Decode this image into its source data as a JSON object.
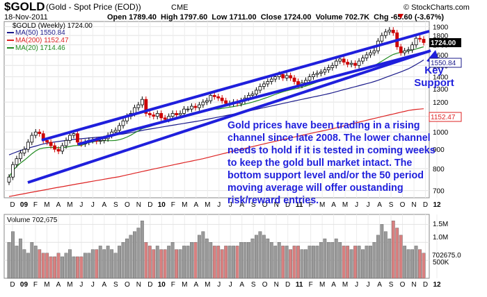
{
  "header": {
    "symbol": "$GOLD",
    "name": "(Gold - Spot Price (EOD))",
    "exchange": "CME",
    "site": "© StockCharts.com",
    "date": "18-Nov-2011",
    "ohlc": "Open 1789.40  High 1797.60  Low 1711.00  Close 1724.00  Volume 702.7K  Chg -65.60 (-3.67%)",
    "change_icon": "down-arrow-icon"
  },
  "colors": {
    "price_up": "#000000",
    "price_down": "#cc0000",
    "ma50": "#1a1a8a",
    "ma200": "#dd2222",
    "ma20": "#1f8a1f",
    "channel": "#1f1fdc",
    "annotation": "#1f1fdc",
    "vol_up": "#9a9a9a",
    "vol_down": "#d98080",
    "price_tag": "#000000",
    "ma50_tag": "#1a1a8a",
    "ma200_tag": "#dd2222"
  },
  "legend": {
    "title": "$GOLD (Weekly) 1724.00",
    "ma50": "MA(50) 1550.84",
    "ma200": "MA(200) 1152.47",
    "ma20": "MA(20) 1714.46"
  },
  "price_tags": {
    "close": "1724.00",
    "ma50": "1550.84",
    "ma200": "1152.47"
  },
  "annotation": {
    "text_lines": [
      "Gold prices have been trading in a rising",
      "channel since late 2008. The lower channel",
      "needs to hold if it is tested in coming weeks",
      "to keep the gold bull market intact. The",
      "bottom support level and/or the 50 period",
      "moving average will offer oustanding",
      "risk/reward entries."
    ],
    "key_support": [
      "Key",
      "Support"
    ]
  },
  "volume_panel": {
    "title": "Volume 702,675",
    "tags": [
      "1.5M",
      "1.0M",
      "702675.0",
      "500K"
    ]
  },
  "chart_data": {
    "type": "candlestick",
    "title": "$GOLD (Weekly) 1724.00",
    "x_tick_labels": [
      "D",
      "09",
      "F",
      "M",
      "A",
      "M",
      "J",
      "J",
      "A",
      "S",
      "O",
      "N",
      "D",
      "10",
      "F",
      "M",
      "A",
      "M",
      "J",
      "J",
      "A",
      "S",
      "O",
      "N",
      "D",
      "11",
      "F",
      "M",
      "A",
      "M",
      "J",
      "J",
      "A",
      "S",
      "O",
      "N",
      "D",
      "12"
    ],
    "y_tick_labels": [
      "700",
      "800",
      "900",
      "1000",
      "1100",
      "1200",
      "1300",
      "1400",
      "1500",
      "1600",
      "1700",
      "1800",
      "1900"
    ],
    "y_scale": "log",
    "ylim": [
      670,
      1960
    ],
    "volume_ticks": [
      "500K",
      "1.0M",
      "1.5M"
    ],
    "last_close": 1724.0,
    "moving_averages": [
      {
        "name": "MA(50)",
        "last": 1550.84
      },
      {
        "name": "MA(200)",
        "last": 1152.47
      },
      {
        "name": "MA(20)",
        "last": 1714.46
      }
    ],
    "weekly_close": [
      760,
      820,
      850,
      880,
      900,
      940,
      980,
      1000,
      990,
      950,
      940,
      920,
      900,
      890,
      920,
      950,
      980,
      990,
      940,
      930,
      940,
      950,
      950,
      945,
      950,
      960,
      980,
      1000,
      1010,
      1040,
      1070,
      1100,
      1120,
      1160,
      1180,
      1220,
      1120,
      1110,
      1100,
      1120,
      1090,
      1080,
      1100,
      1120,
      1110,
      1120,
      1150,
      1150,
      1170,
      1160,
      1180,
      1200,
      1210,
      1250,
      1240,
      1230,
      1210,
      1190,
      1190,
      1200,
      1190,
      1210,
      1230,
      1250,
      1260,
      1290,
      1320,
      1340,
      1360,
      1380,
      1400,
      1420,
      1390,
      1410,
      1390,
      1360,
      1330,
      1350,
      1370,
      1400,
      1420,
      1430,
      1440,
      1460,
      1480,
      1500,
      1540,
      1560,
      1530,
      1510,
      1520,
      1500,
      1540,
      1570,
      1600,
      1620,
      1640,
      1740,
      1800,
      1840,
      1860,
      1830,
      1680,
      1620,
      1640,
      1650,
      1700,
      1770,
      1760,
      1724
    ],
    "ma50": [
      870,
      878,
      886,
      893,
      900,
      906,
      912,
      918,
      924,
      930,
      934,
      938,
      941,
      944,
      947,
      950,
      953,
      956,
      958,
      960,
      962,
      964,
      966,
      968,
      970,
      973,
      976,
      979,
      982,
      985,
      988,
      992,
      996,
      1000,
      1005,
      1010,
      1014,
      1018,
      1022,
      1026,
      1030,
      1034,
      1038,
      1042,
      1046,
      1050,
      1054,
      1058,
      1062,
      1066,
      1070,
      1075,
      1080,
      1085,
      1090,
      1095,
      1100,
      1105,
      1110,
      1115,
      1120,
      1125,
      1130,
      1136,
      1142,
      1148,
      1154,
      1160,
      1166,
      1172,
      1178,
      1184,
      1190,
      1196,
      1202,
      1208,
      1214,
      1220,
      1226,
      1232,
      1238,
      1244,
      1250,
      1256,
      1263,
      1270,
      1278,
      1286,
      1294,
      1302,
      1310,
      1318,
      1326,
      1334,
      1342,
      1350,
      1360,
      1370,
      1382,
      1394,
      1406,
      1418,
      1430,
      1442,
      1456,
      1470,
      1488,
      1508,
      1528,
      1550.84
    ],
    "ma200": [
      675,
      678,
      681,
      684,
      687,
      690,
      693,
      696,
      699,
      702,
      705,
      708,
      711,
      714,
      717,
      720,
      723,
      726,
      729,
      732,
      735,
      738,
      741,
      744,
      747,
      750,
      753,
      756,
      759,
      762,
      766,
      770,
      774,
      778,
      782,
      786,
      790,
      794,
      798,
      802,
      806,
      810,
      814,
      818,
      822,
      826,
      830,
      834,
      838,
      842,
      846,
      850,
      855,
      860,
      865,
      870,
      875,
      880,
      885,
      890,
      895,
      900,
      905,
      910,
      915,
      920,
      925,
      930,
      935,
      940,
      945,
      950,
      955,
      960,
      965,
      970,
      975,
      980,
      985,
      990,
      995,
      1000,
      1005,
      1010,
      1015,
      1020,
      1026,
      1032,
      1038,
      1044,
      1050,
      1056,
      1062,
      1068,
      1074,
      1080,
      1086,
      1092,
      1098,
      1104,
      1110,
      1116,
      1122,
      1128,
      1134,
      1140,
      1144,
      1148,
      1150,
      1152.47
    ],
    "volume": [
      1.0,
      1.3,
      0.9,
      1.1,
      0.8,
      0.7,
      1.0,
      0.9,
      0.8,
      0.7,
      0.7,
      0.6,
      0.6,
      0.7,
      0.6,
      0.7,
      0.8,
      0.6,
      0.6,
      0.6,
      0.7,
      0.7,
      0.8,
      0.8,
      0.9,
      0.8,
      0.9,
      0.8,
      0.7,
      0.9,
      1.0,
      1.1,
      1.2,
      1.3,
      1.4,
      1.6,
      1.0,
      0.9,
      0.8,
      0.9,
      0.8,
      0.8,
      0.9,
      1.0,
      0.8,
      0.8,
      0.9,
      0.9,
      1.0,
      1.0,
      1.2,
      1.3,
      1.1,
      1.0,
      0.9,
      0.9,
      0.8,
      0.9,
      0.9,
      0.9,
      0.9,
      1.0,
      1.0,
      1.0,
      1.1,
      1.2,
      1.3,
      1.2,
      1.1,
      1.0,
      0.9,
      1.0,
      0.9,
      0.9,
      0.8,
      0.9,
      0.9,
      0.8,
      0.8,
      0.9,
      0.9,
      0.9,
      1.0,
      1.1,
      1.0,
      1.0,
      1.1,
      1.0,
      0.9,
      0.9,
      0.8,
      0.9,
      0.9,
      0.8,
      0.9,
      0.9,
      1.0,
      1.2,
      1.5,
      1.3,
      1.1,
      1.6,
      1.4,
      1.2,
      0.9,
      0.8,
      0.8,
      0.9,
      0.8,
      0.7
    ]
  }
}
